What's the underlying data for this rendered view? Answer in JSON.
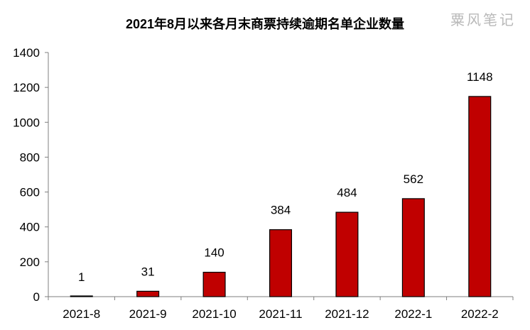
{
  "chart_data": {
    "type": "bar",
    "title": "2021年8月以来各月末商票持续逾期名单企业数量",
    "categories": [
      "2021-8",
      "2021-9",
      "2021-10",
      "2021-11",
      "2021-12",
      "2022-1",
      "2022-2"
    ],
    "values": [
      1,
      31,
      140,
      384,
      484,
      562,
      1148
    ],
    "data_labels": [
      "1",
      "31",
      "140",
      "384",
      "484",
      "562",
      "1148"
    ],
    "ylim": [
      0,
      1400
    ],
    "yticks": [
      0,
      200,
      400,
      600,
      800,
      1000,
      1200,
      1400
    ],
    "ytick_labels": [
      "0",
      "200",
      "400",
      "600",
      "800",
      "1000",
      "1200",
      "1400"
    ],
    "grid": false,
    "legend": "none",
    "bar_color": "#c00000",
    "bar_edge_color": "#000000"
  },
  "watermark": "粟风笔记"
}
